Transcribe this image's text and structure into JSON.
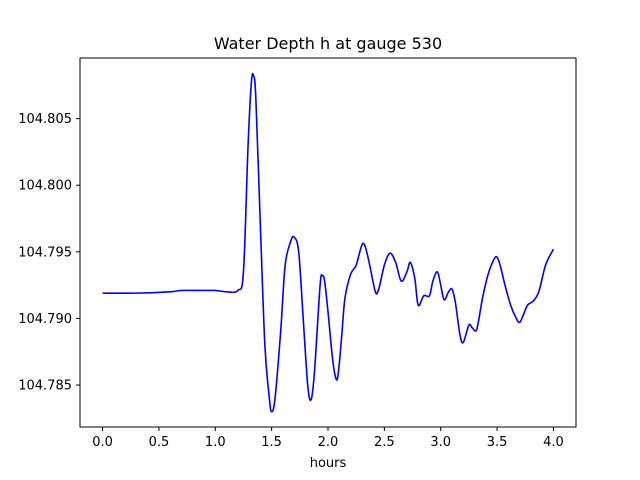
{
  "chart_data": {
    "type": "line",
    "title": "Water Depth h at gauge 530",
    "xlabel": "hours",
    "ylabel": "",
    "xlim": [
      -0.2,
      4.2
    ],
    "ylim": [
      104.78185,
      104.80955
    ],
    "xticks": [
      0.0,
      0.5,
      1.0,
      1.5,
      2.0,
      2.5,
      3.0,
      3.5,
      4.0
    ],
    "xtick_labels": [
      "0.0",
      "0.5",
      "1.0",
      "1.5",
      "2.0",
      "2.5",
      "3.0",
      "3.5",
      "4.0"
    ],
    "yticks": [
      104.785,
      104.79,
      104.795,
      104.8,
      104.805
    ],
    "ytick_labels": [
      "104.785",
      "104.790",
      "104.795",
      "104.800",
      "104.805"
    ],
    "grid": false,
    "series": [
      {
        "color": "#0000ff",
        "x": [
          0.0,
          0.3,
          0.6,
          0.7,
          0.9,
          1.0,
          1.1,
          1.2,
          1.25,
          1.29,
          1.32,
          1.34,
          1.36,
          1.4,
          1.44,
          1.48,
          1.5,
          1.53,
          1.58,
          1.62,
          1.67,
          1.7,
          1.74,
          1.78,
          1.82,
          1.85,
          1.88,
          1.93,
          1.95,
          1.97,
          2.0,
          2.04,
          2.07,
          2.09,
          2.12,
          2.15,
          2.2,
          2.25,
          2.3,
          2.33,
          2.37,
          2.42,
          2.45,
          2.5,
          2.55,
          2.6,
          2.65,
          2.7,
          2.73,
          2.77,
          2.8,
          2.85,
          2.9,
          2.93,
          2.97,
          3.0,
          3.03,
          3.07,
          3.1,
          3.13,
          3.17,
          3.2,
          3.25,
          3.28,
          3.32,
          3.37,
          3.42,
          3.47,
          3.5,
          3.53,
          3.57,
          3.62,
          3.67,
          3.7,
          3.73,
          3.77,
          3.82,
          3.87,
          3.93,
          4.0
        ],
        "y": [
          104.7919,
          104.7919,
          104.792,
          104.7921,
          104.7921,
          104.7921,
          104.792,
          104.7921,
          104.7935,
          104.8028,
          104.8077,
          104.8082,
          104.8065,
          104.797,
          104.788,
          104.784,
          104.783,
          104.784,
          104.789,
          104.794,
          104.7958,
          104.7961,
          104.795,
          104.79,
          104.785,
          104.7839,
          104.786,
          104.7925,
          104.7932,
          104.7928,
          104.7905,
          104.787,
          104.7855,
          104.7858,
          104.7885,
          104.7915,
          104.7933,
          104.794,
          104.7955,
          104.7954,
          104.794,
          104.792,
          104.7922,
          104.794,
          104.7949,
          104.7942,
          104.7928,
          104.7935,
          104.7942,
          104.793,
          104.791,
          104.7917,
          104.7917,
          104.7928,
          104.7935,
          104.7925,
          104.7914,
          104.792,
          104.7922,
          104.7912,
          104.7888,
          104.7882,
          104.7895,
          104.7893,
          104.7892,
          104.7915,
          104.7933,
          104.7944,
          104.7946,
          104.7939,
          104.7925,
          104.791,
          104.79,
          104.7897,
          104.7902,
          104.791,
          104.7913,
          104.792,
          104.794,
          104.7952
        ]
      }
    ]
  }
}
